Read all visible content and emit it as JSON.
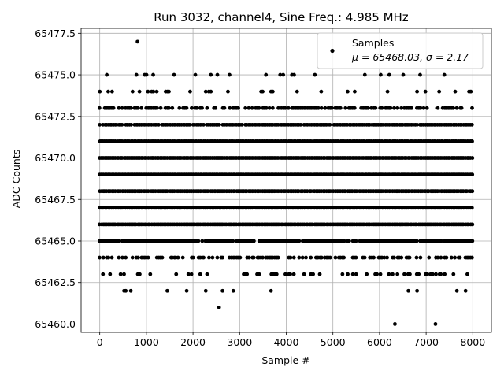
{
  "chart_data": {
    "type": "scatter",
    "title": "Run 3032, channel4, Sine Freq.: 4.985 MHz",
    "xlabel": "Sample #",
    "ylabel": "ADC Counts",
    "xlim": [
      -400,
      8400
    ],
    "ylim": [
      65459.5,
      65477.8
    ],
    "xticks": [
      0,
      1000,
      2000,
      3000,
      4000,
      5000,
      6000,
      7000,
      8000
    ],
    "yticks": [
      65460.0,
      65462.5,
      65465.0,
      65467.5,
      65470.0,
      65472.5,
      65475.0,
      65477.5
    ],
    "xtick_labels": [
      "0",
      "1000",
      "2000",
      "3000",
      "4000",
      "5000",
      "6000",
      "7000",
      "8000"
    ],
    "ytick_labels": [
      "65460.0",
      "65462.5",
      "65465.0",
      "65467.5",
      "65470.0",
      "65472.5",
      "65475.0",
      "65477.5"
    ],
    "grid": true,
    "legend": {
      "placement": "top-right",
      "series_label": "Samples",
      "stats_label": "μ = 65468.03, σ = 2.17"
    },
    "series": [
      {
        "name": "Samples",
        "marker_color": "#000000",
        "x_range": [
          0,
          8000
        ],
        "n_samples": 8000,
        "mean": 65468.03,
        "std": 2.17,
        "levels": [
          65460,
          65461,
          65462,
          65463,
          65464,
          65465,
          65466,
          65467,
          65468,
          65469,
          65470,
          65471,
          65472,
          65473,
          65474,
          65475,
          65477
        ],
        "level_density": [
          0.003,
          0.02,
          0.06,
          0.25,
          0.5,
          0.95,
          1,
          1,
          1,
          1,
          1,
          1,
          0.95,
          0.55,
          0.2,
          0.05,
          0.003
        ],
        "outliers": [
          {
            "x": 6330,
            "y": 65460
          },
          {
            "x": 7200,
            "y": 65460
          },
          {
            "x": 810,
            "y": 65477
          }
        ]
      }
    ]
  }
}
